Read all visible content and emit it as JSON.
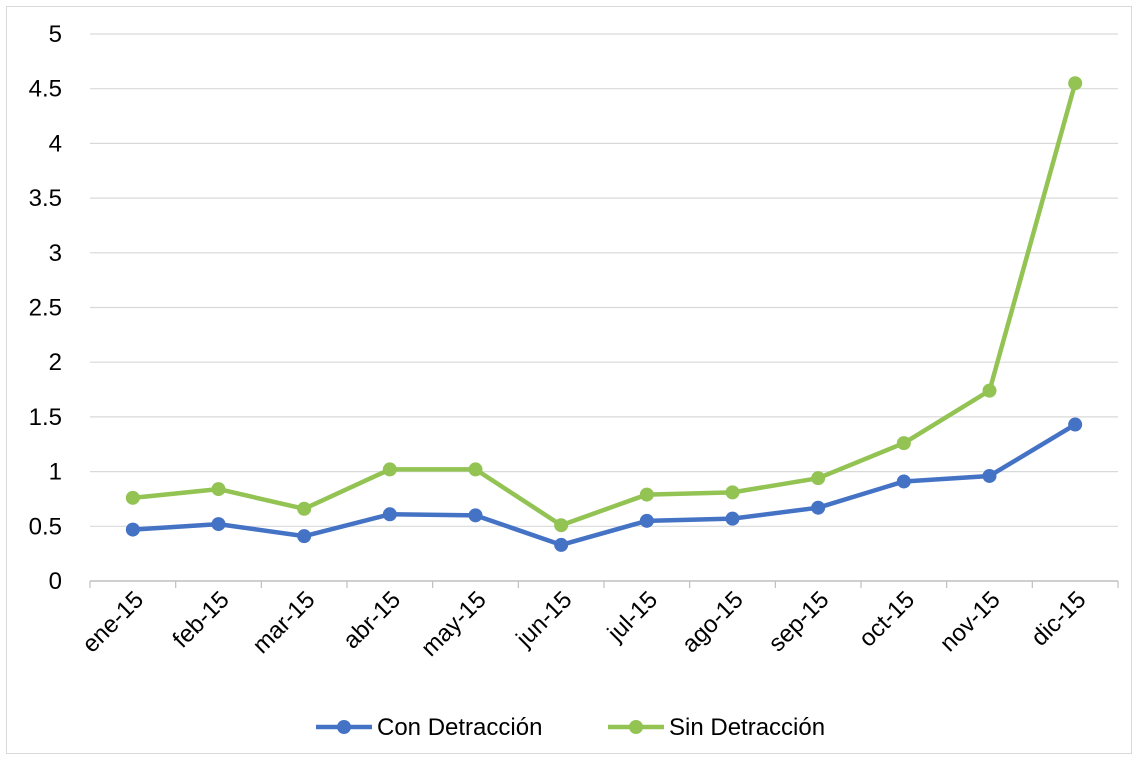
{
  "chart_data": {
    "type": "line",
    "title": "",
    "xlabel": "",
    "ylabel": "",
    "categories": [
      "ene-15",
      "feb-15",
      "mar-15",
      "abr-15",
      "may-15",
      "jun-15",
      "jul-15",
      "ago-15",
      "sep-15",
      "oct-15",
      "nov-15",
      "dic-15"
    ],
    "ylim": [
      0,
      5
    ],
    "yticks": [
      0,
      0.5,
      1,
      1.5,
      2,
      2.5,
      3,
      3.5,
      4,
      4.5,
      5
    ],
    "ytick_labels": [
      "0",
      "0.5",
      "1",
      "1.5",
      "2",
      "2.5",
      "3",
      "3.5",
      "4",
      "4.5",
      "5"
    ],
    "grid": "horizontal",
    "legend_position": "bottom",
    "series": [
      {
        "name": "Con Detracción",
        "color": "#4472c4",
        "values": [
          0.47,
          0.52,
          0.41,
          0.61,
          0.6,
          0.33,
          0.55,
          0.57,
          0.67,
          0.91,
          0.96,
          1.43
        ]
      },
      {
        "name": "Sin Detracción",
        "color": "#92c353",
        "values": [
          0.76,
          0.84,
          0.66,
          1.02,
          1.02,
          0.51,
          0.79,
          0.81,
          0.94,
          1.26,
          1.74,
          4.55
        ]
      }
    ]
  }
}
